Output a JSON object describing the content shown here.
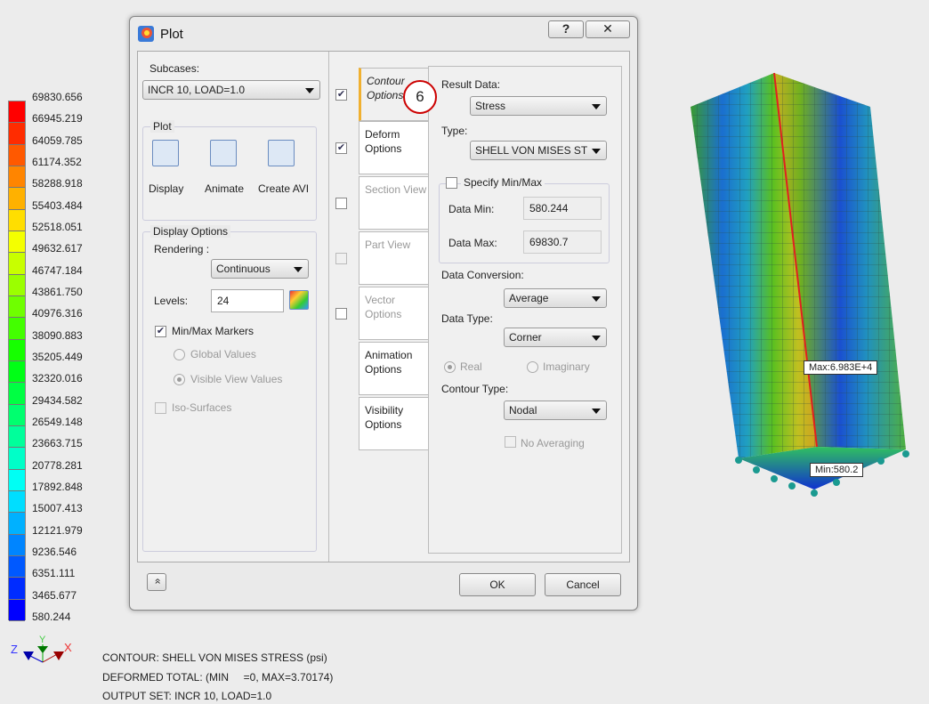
{
  "legend": {
    "values": [
      "69830.656",
      "66945.219",
      "64059.785",
      "61174.352",
      "58288.918",
      "55403.484",
      "52518.051",
      "49632.617",
      "46747.184",
      "43861.750",
      "40976.316",
      "38090.883",
      "35205.449",
      "32320.016",
      "29434.582",
      "26549.148",
      "23663.715",
      "20778.281",
      "17892.848",
      "15007.413",
      "12121.979",
      "9236.546",
      "6351.111",
      "3465.677",
      "580.244"
    ]
  },
  "axes": {
    "x": "X",
    "y": "Y",
    "z": "Z"
  },
  "info": {
    "line1": "CONTOUR: SHELL VON MISES STRESS (psi)",
    "line2": "DEFORMED TOTAL: (MIN     =0, MAX=3.70174)",
    "line3": "OUTPUT SET: INCR 10, LOAD=1.0"
  },
  "model": {
    "max_label": "Max:6.983E+4",
    "min_label": "Min:580.2"
  },
  "dialog": {
    "title": "Plot",
    "help": "?",
    "close": "✕",
    "subcases_label": "Subcases:",
    "subcase_value": "INCR 10, LOAD=1.0",
    "plot_group": "Plot",
    "display": "Display",
    "animate": "Animate",
    "create_avi": "Create AVI",
    "display_options": "Display Options",
    "rendering_label": "Rendering :",
    "rendering_value": "Continuous",
    "levels_label": "Levels:",
    "levels_value": "24",
    "minmax_markers": "Min/Max Markers",
    "global_values": "Global Values",
    "visible_view_values": "Visible View Values",
    "iso_surfaces": "Iso-Surfaces",
    "tabs": [
      {
        "label": "Contour Options",
        "checked": true
      },
      {
        "label": "Deform Options",
        "checked": true
      },
      {
        "label": "Section View",
        "checked": false
      },
      {
        "label": "Part View",
        "checked": false
      },
      {
        "label": "Vector Options",
        "checked": false
      },
      {
        "label": "Animation Options"
      },
      {
        "label": "Visibility Options"
      }
    ],
    "step_badge": "6",
    "result_data_label": "Result Data:",
    "result_data_value": "Stress",
    "type_label": "Type:",
    "type_value": "SHELL VON MISES ST",
    "specify_minmax": "Specify Min/Max",
    "data_min_label": "Data Min:",
    "data_min_value": "580.244",
    "data_max_label": "Data Max:",
    "data_max_value": "69830.7",
    "data_conversion_label": "Data Conversion:",
    "data_conversion_value": "Average",
    "data_type_label": "Data Type:",
    "data_type_value": "Corner",
    "real": "Real",
    "imaginary": "Imaginary",
    "contour_type_label": "Contour Type:",
    "contour_type_value": "Nodal",
    "no_averaging": "No Averaging",
    "collapse": "»",
    "ok": "OK",
    "cancel": "Cancel"
  }
}
